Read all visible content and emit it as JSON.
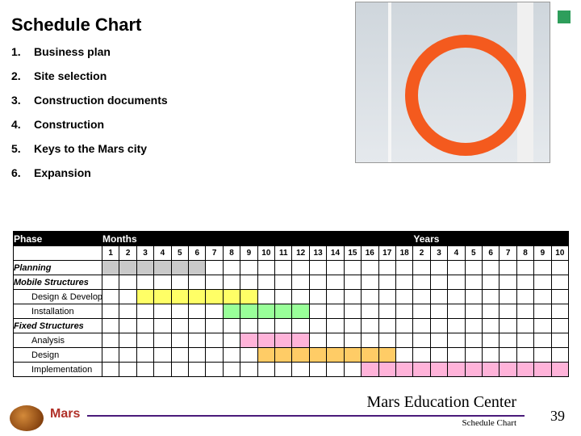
{
  "title": "Schedule Chart",
  "items": [
    {
      "n": "1.",
      "t": "Business plan"
    },
    {
      "n": "2.",
      "t": "Site selection"
    },
    {
      "n": "3.",
      "t": "Construction documents"
    },
    {
      "n": "4.",
      "t": "Construction"
    },
    {
      "n": "5.",
      "t": "Keys to the Mars city"
    },
    {
      "n": "6.",
      "t": "Expansion"
    }
  ],
  "gantt": {
    "headers": {
      "phase": "Phase",
      "months": "Months",
      "years": "Years"
    },
    "label_col_w": 110,
    "n_cols": 27,
    "months": [
      "1",
      "2",
      "3",
      "4",
      "5",
      "6",
      "7",
      "8",
      "9",
      "10",
      "11",
      "12",
      "13",
      "14",
      "15",
      "16",
      "17",
      "18"
    ],
    "years": [
      "2",
      "3",
      "4",
      "5",
      "6",
      "7",
      "8",
      "9",
      "10"
    ],
    "colors": {
      "grey": "#c9c9c9",
      "yellow": "#ffff66",
      "green": "#99ff99",
      "pink": "#ffb3d9",
      "orange": "#ffcc66"
    },
    "rows": [
      {
        "label": "Planning",
        "italic": true,
        "sub": false,
        "cells": [
          "grey",
          "grey",
          "grey",
          "grey",
          "grey",
          "grey",
          "",
          "",
          "",
          "",
          "",
          "",
          "",
          "",
          "",
          "",
          "",
          "",
          "",
          "",
          "",
          "",
          "",
          "",
          "",
          "",
          ""
        ]
      },
      {
        "label": "Mobile Structures",
        "italic": true,
        "sub": false,
        "cells": [
          "",
          "",
          "",
          "",
          "",
          "",
          "",
          "",
          "",
          "",
          "",
          "",
          "",
          "",
          "",
          "",
          "",
          "",
          "",
          "",
          "",
          "",
          "",
          "",
          "",
          "",
          ""
        ]
      },
      {
        "label": "Design & Development",
        "italic": false,
        "sub": true,
        "cells": [
          "",
          "",
          "yellow",
          "yellow",
          "yellow",
          "yellow",
          "yellow",
          "yellow",
          "yellow",
          "",
          "",
          "",
          "",
          "",
          "",
          "",
          "",
          "",
          "",
          "",
          "",
          "",
          "",
          "",
          "",
          "",
          ""
        ]
      },
      {
        "label": "Installation",
        "italic": false,
        "sub": true,
        "cells": [
          "",
          "",
          "",
          "",
          "",
          "",
          "",
          "green",
          "green",
          "green",
          "green",
          "green",
          "",
          "",
          "",
          "",
          "",
          "",
          "",
          "",
          "",
          "",
          "",
          "",
          "",
          "",
          ""
        ]
      },
      {
        "label": "Fixed Structures",
        "italic": true,
        "sub": false,
        "cells": [
          "",
          "",
          "",
          "",
          "",
          "",
          "",
          "",
          "",
          "",
          "",
          "",
          "",
          "",
          "",
          "",
          "",
          "",
          "",
          "",
          "",
          "",
          "",
          "",
          "",
          "",
          ""
        ]
      },
      {
        "label": "Analysis",
        "italic": false,
        "sub": true,
        "cells": [
          "",
          "",
          "",
          "",
          "",
          "",
          "",
          "",
          "pink",
          "pink",
          "pink",
          "pink",
          "",
          "",
          "",
          "",
          "",
          "",
          "",
          "",
          "",
          "",
          "",
          "",
          "",
          "",
          ""
        ]
      },
      {
        "label": "Design",
        "italic": false,
        "sub": true,
        "cells": [
          "",
          "",
          "",
          "",
          "",
          "",
          "",
          "",
          "",
          "orange",
          "orange",
          "orange",
          "orange",
          "orange",
          "orange",
          "orange",
          "orange",
          "",
          "",
          "",
          "",
          "",
          "",
          "",
          "",
          "",
          ""
        ]
      },
      {
        "label": "Implementation",
        "italic": false,
        "sub": true,
        "cells": [
          "",
          "",
          "",
          "",
          "",
          "",
          "",
          "",
          "",
          "",
          "",
          "",
          "",
          "",
          "",
          "pink",
          "pink",
          "pink",
          "pink",
          "pink",
          "pink",
          "pink",
          "pink",
          "pink",
          "pink",
          "pink",
          "pink"
        ]
      }
    ]
  },
  "footer": {
    "center": "Mars Education Center",
    "breadcrumb": "Schedule Chart",
    "page": "39",
    "logo2": "Mars"
  }
}
